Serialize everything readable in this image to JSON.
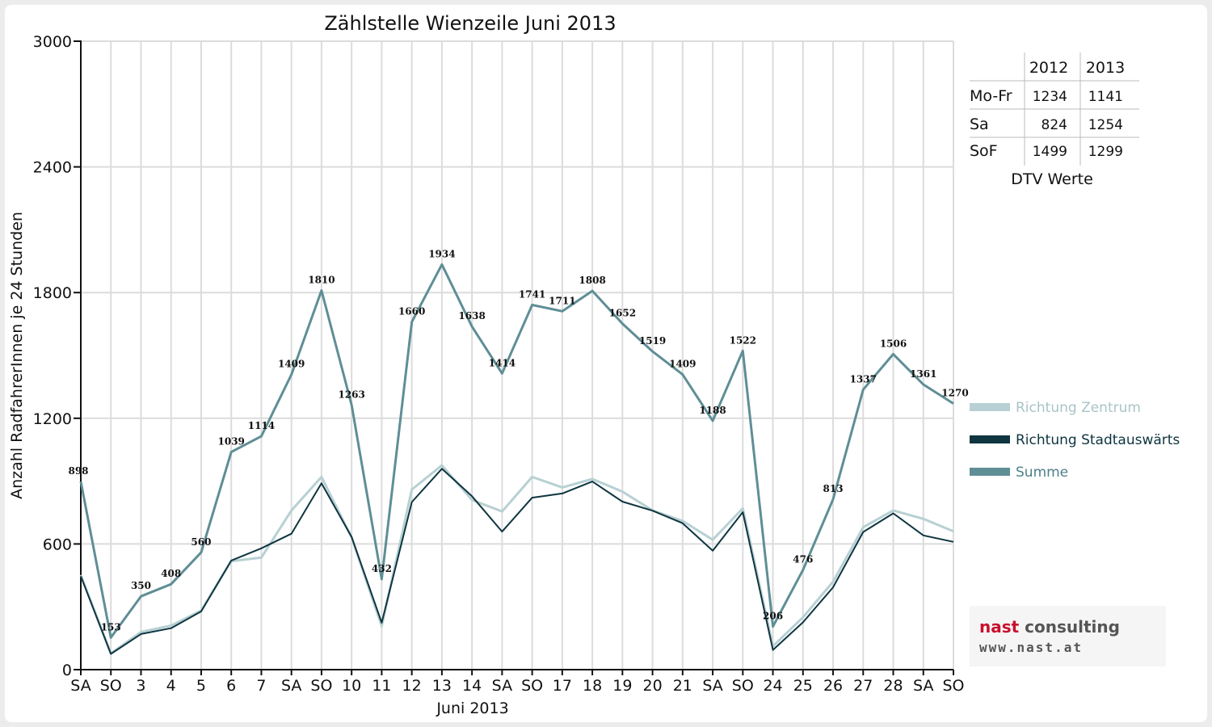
{
  "chart_data": {
    "type": "line",
    "title": "Zählstelle Wienzeile Juni 2013",
    "ylabel": "Anzahl RadfahrerInnen je 24 Stunden",
    "xlabel": "Juni 2013",
    "ylim": [
      0,
      3000
    ],
    "yticks": [
      0,
      600,
      1200,
      1800,
      2400,
      3000
    ],
    "grid": true,
    "legend_position": "right",
    "categories": [
      "SA",
      "SO",
      "3",
      "4",
      "5",
      "6",
      "7",
      "SA",
      "SO",
      "10",
      "11",
      "12",
      "13",
      "14",
      "SA",
      "SO",
      "17",
      "18",
      "19",
      "20",
      "21",
      "SA",
      "SO",
      "24",
      "25",
      "26",
      "27",
      "28",
      "SA",
      "SO"
    ],
    "weekend_color": "#e00000",
    "weekend_categories": [
      1,
      8,
      15,
      22,
      29
    ],
    "series": [
      {
        "name": "Richtung Zentrum",
        "color": "#b8d0d3",
        "width": 3,
        "values": [
          452,
          78,
          180,
          210,
          282,
          518,
          535,
          760,
          920,
          630,
          208,
          860,
          975,
          810,
          755,
          920,
          870,
          910,
          850,
          760,
          710,
          620,
          770,
          112,
          250,
          420,
          680,
          760,
          720,
          660
        ]
      },
      {
        "name": "Richtung Stadtauswärts",
        "color": "#0e3540",
        "width": 2,
        "values": [
          446,
          75,
          170,
          198,
          278,
          521,
          579,
          649,
          890,
          633,
          224,
          800,
          959,
          828,
          659,
          821,
          841,
          898,
          802,
          759,
          699,
          568,
          752,
          94,
          226,
          393,
          657,
          746,
          641,
          610
        ]
      },
      {
        "name": "Summe",
        "color": "#5f8e96",
        "width": 3,
        "values": [
          898,
          153,
          350,
          408,
          560,
          1039,
          1114,
          1409,
          1810,
          1263,
          432,
          1660,
          1934,
          1638,
          1414,
          1741,
          1711,
          1808,
          1652,
          1519,
          1409,
          1188,
          1522,
          206,
          476,
          813,
          1337,
          1506,
          1361,
          1270
        ]
      }
    ],
    "data_labels": [
      "898",
      "153",
      "350",
      "408",
      "560",
      "1039",
      "1114",
      "1409",
      "1810",
      "1263",
      "432",
      "1660",
      "1934",
      "1638",
      "1414",
      "1741",
      "1711",
      "1808",
      "1652",
      "1519",
      "1409",
      "1188",
      "1522",
      "206",
      "476",
      "813",
      "1337",
      "1506",
      "1361",
      "1270"
    ]
  },
  "dtv_table": {
    "caption": "DTV Werte",
    "headers": [
      "",
      "2012",
      "2013"
    ],
    "rows": [
      {
        "label": "Mo-Fr",
        "v2012": "1234",
        "v2013": "1141"
      },
      {
        "label": "Sa",
        "v2012": "824",
        "v2013": "1254"
      },
      {
        "label": "SoF",
        "v2012": "1499",
        "v2013": "1299"
      }
    ]
  },
  "logo": {
    "line1_a": "nast",
    "line1_b": " consulting",
    "line2": "www.nast.at"
  }
}
